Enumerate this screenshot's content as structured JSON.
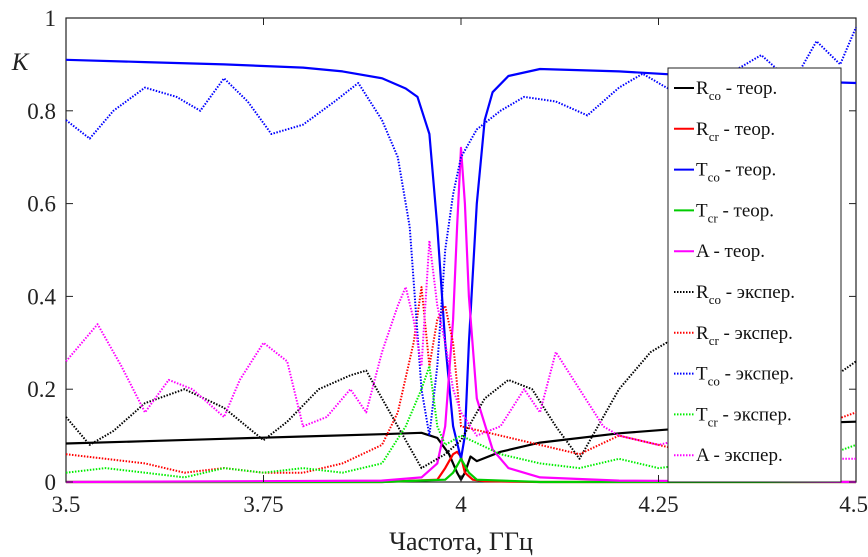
{
  "chart_data": {
    "type": "line",
    "xlabel": "Частота, ГГц",
    "ylabel": "К",
    "xlim": [
      3.5,
      4.5
    ],
    "ylim": [
      0,
      1
    ],
    "x_ticks": [
      "3.5",
      "3.75",
      "4",
      "4.25",
      "4.5"
    ],
    "y_ticks": [
      "0",
      "0.2",
      "0.4",
      "0.6",
      "0.8",
      "1"
    ],
    "grid": false,
    "legend_position": "right",
    "series": [
      {
        "name": "R_co - теор.",
        "label_main": "R",
        "label_sub": "co",
        "label_rest": " - теор.",
        "color": "#000000",
        "style": "solid",
        "x": [
          3.5,
          3.6,
          3.7,
          3.8,
          3.9,
          3.95,
          3.97,
          3.985,
          3.995,
          4.0,
          4.005,
          4.012,
          4.02,
          4.05,
          4.1,
          4.2,
          4.3,
          4.4,
          4.5
        ],
        "y": [
          0.083,
          0.088,
          0.093,
          0.098,
          0.103,
          0.106,
          0.095,
          0.06,
          0.02,
          0.005,
          0.02,
          0.055,
          0.045,
          0.065,
          0.085,
          0.105,
          0.118,
          0.125,
          0.13
        ]
      },
      {
        "name": "R_cr - теор.",
        "label_main": "R",
        "label_sub": "cr",
        "label_rest": " - теор.",
        "color": "#ff0000",
        "style": "solid",
        "x": [
          3.5,
          3.9,
          3.97,
          3.98,
          3.99,
          3.995,
          4.0,
          4.005,
          4.015,
          4.03,
          4.1,
          4.5
        ],
        "y": [
          0.0,
          0.0,
          0.005,
          0.03,
          0.06,
          0.065,
          0.055,
          0.02,
          0.005,
          0.002,
          0.0,
          0.0
        ]
      },
      {
        "name": "T_co - теор.",
        "label_main": "T",
        "label_sub": "co",
        "label_rest": " - теор.",
        "color": "#0000ff",
        "style": "solid",
        "x": [
          3.5,
          3.6,
          3.7,
          3.8,
          3.85,
          3.9,
          3.93,
          3.945,
          3.96,
          3.97,
          3.98,
          3.99,
          4.0,
          4.005,
          4.01,
          4.02,
          4.03,
          4.04,
          4.06,
          4.1,
          4.2,
          4.3,
          4.4,
          4.5
        ],
        "y": [
          0.91,
          0.905,
          0.9,
          0.893,
          0.885,
          0.87,
          0.848,
          0.83,
          0.75,
          0.55,
          0.3,
          0.12,
          0.05,
          0.1,
          0.3,
          0.6,
          0.78,
          0.84,
          0.875,
          0.89,
          0.885,
          0.875,
          0.865,
          0.86
        ]
      },
      {
        "name": "T_cr - теор.",
        "label_main": "T",
        "label_sub": "cr",
        "label_rest": " - теор.",
        "color": "#00cc00",
        "style": "solid",
        "x": [
          3.5,
          3.9,
          3.98,
          3.99,
          4.0,
          4.01,
          4.02,
          4.1,
          4.5
        ],
        "y": [
          0.0,
          0.0,
          0.005,
          0.02,
          0.05,
          0.02,
          0.005,
          0.0,
          0.0
        ]
      },
      {
        "name": "A - теор.",
        "label_main": "A",
        "label_sub": "",
        "label_rest": " - теор.",
        "color": "#ff00ff",
        "style": "solid",
        "x": [
          3.5,
          3.9,
          3.95,
          3.97,
          3.98,
          3.99,
          3.995,
          4.0,
          4.005,
          4.01,
          4.02,
          4.04,
          4.06,
          4.1,
          4.2,
          4.5
        ],
        "y": [
          0.0,
          0.003,
          0.01,
          0.04,
          0.12,
          0.35,
          0.55,
          0.72,
          0.6,
          0.4,
          0.18,
          0.07,
          0.03,
          0.01,
          0.003,
          0.0
        ]
      },
      {
        "name": "R_co - экспер.",
        "label_main": "R",
        "label_sub": "co",
        "label_rest": " - экспер.",
        "color": "#000000",
        "style": "dotted",
        "x": [
          3.5,
          3.53,
          3.56,
          3.6,
          3.65,
          3.7,
          3.75,
          3.78,
          3.82,
          3.86,
          3.88,
          3.91,
          3.95,
          3.98,
          4.0,
          4.03,
          4.06,
          4.09,
          4.12,
          4.15,
          4.2,
          4.24,
          4.26,
          4.3,
          4.33,
          4.37,
          4.4,
          4.45,
          4.5
        ],
        "y": [
          0.14,
          0.08,
          0.11,
          0.17,
          0.2,
          0.16,
          0.09,
          0.13,
          0.2,
          0.23,
          0.24,
          0.15,
          0.03,
          0.06,
          0.09,
          0.18,
          0.22,
          0.2,
          0.12,
          0.05,
          0.2,
          0.28,
          0.3,
          0.28,
          0.22,
          0.1,
          0.05,
          0.2,
          0.26
        ]
      },
      {
        "name": "R_cr - экспер.",
        "label_main": "R",
        "label_sub": "cr",
        "label_rest": " - экспер.",
        "color": "#ff0000",
        "style": "dotted",
        "x": [
          3.5,
          3.55,
          3.6,
          3.65,
          3.7,
          3.75,
          3.8,
          3.85,
          3.9,
          3.92,
          3.94,
          3.95,
          3.96,
          3.97,
          3.98,
          3.99,
          4.0,
          4.05,
          4.1,
          4.15,
          4.2,
          4.25,
          4.3,
          4.35,
          4.4,
          4.45,
          4.5
        ],
        "y": [
          0.06,
          0.05,
          0.04,
          0.02,
          0.03,
          0.02,
          0.02,
          0.04,
          0.08,
          0.15,
          0.3,
          0.42,
          0.25,
          0.35,
          0.38,
          0.3,
          0.12,
          0.1,
          0.08,
          0.06,
          0.1,
          0.08,
          0.06,
          0.08,
          0.1,
          0.12,
          0.15
        ]
      },
      {
        "name": "T_co - экспер.",
        "label_main": "T",
        "label_sub": "co",
        "label_rest": " - экспер.",
        "color": "#0000ff",
        "style": "dotted",
        "x": [
          3.5,
          3.53,
          3.56,
          3.6,
          3.64,
          3.67,
          3.7,
          3.73,
          3.76,
          3.8,
          3.84,
          3.87,
          3.9,
          3.92,
          3.935,
          3.95,
          3.96,
          3.97,
          3.98,
          3.99,
          4.0,
          4.02,
          4.05,
          4.08,
          4.12,
          4.16,
          4.2,
          4.23,
          4.26,
          4.3,
          4.34,
          4.38,
          4.42,
          4.45,
          4.48,
          4.5
        ],
        "y": [
          0.78,
          0.74,
          0.8,
          0.85,
          0.83,
          0.8,
          0.87,
          0.82,
          0.75,
          0.77,
          0.82,
          0.86,
          0.78,
          0.7,
          0.55,
          0.2,
          0.1,
          0.25,
          0.5,
          0.62,
          0.7,
          0.76,
          0.8,
          0.83,
          0.82,
          0.79,
          0.85,
          0.88,
          0.85,
          0.82,
          0.88,
          0.92,
          0.86,
          0.95,
          0.9,
          0.98
        ]
      },
      {
        "name": "T_cr - экспер.",
        "label_main": "T",
        "label_sub": "cr",
        "label_rest": " - экспер.",
        "color": "#00ee00",
        "style": "dotted",
        "x": [
          3.5,
          3.55,
          3.6,
          3.65,
          3.7,
          3.75,
          3.8,
          3.85,
          3.9,
          3.93,
          3.95,
          3.96,
          3.97,
          3.98,
          4.0,
          4.05,
          4.1,
          4.15,
          4.2,
          4.25,
          4.3,
          4.35,
          4.4,
          4.45,
          4.5
        ],
        "y": [
          0.02,
          0.03,
          0.02,
          0.01,
          0.03,
          0.02,
          0.03,
          0.02,
          0.04,
          0.12,
          0.2,
          0.25,
          0.12,
          0.08,
          0.1,
          0.06,
          0.04,
          0.03,
          0.05,
          0.03,
          0.04,
          0.06,
          0.04,
          0.05,
          0.08
        ]
      },
      {
        "name": "A - экспер.",
        "label_main": "A",
        "label_sub": "",
        "label_rest": " - экспер.",
        "color": "#ff00ff",
        "style": "dotted",
        "x": [
          3.5,
          3.52,
          3.54,
          3.57,
          3.6,
          3.63,
          3.66,
          3.7,
          3.72,
          3.75,
          3.78,
          3.8,
          3.83,
          3.86,
          3.88,
          3.9,
          3.92,
          3.93,
          3.94,
          3.95,
          3.96,
          3.97,
          3.98,
          3.99,
          4.0,
          4.02,
          4.05,
          4.08,
          4.1,
          4.12,
          4.15,
          4.18,
          4.2,
          4.25,
          4.3,
          4.35,
          4.4,
          4.45,
          4.5
        ],
        "y": [
          0.26,
          0.3,
          0.34,
          0.25,
          0.15,
          0.22,
          0.2,
          0.14,
          0.22,
          0.3,
          0.26,
          0.12,
          0.14,
          0.2,
          0.15,
          0.28,
          0.38,
          0.42,
          0.35,
          0.25,
          0.52,
          0.38,
          0.3,
          0.2,
          0.15,
          0.1,
          0.12,
          0.2,
          0.15,
          0.28,
          0.2,
          0.12,
          0.1,
          0.08,
          0.1,
          0.06,
          0.04,
          0.05,
          0.05
        ]
      }
    ]
  }
}
